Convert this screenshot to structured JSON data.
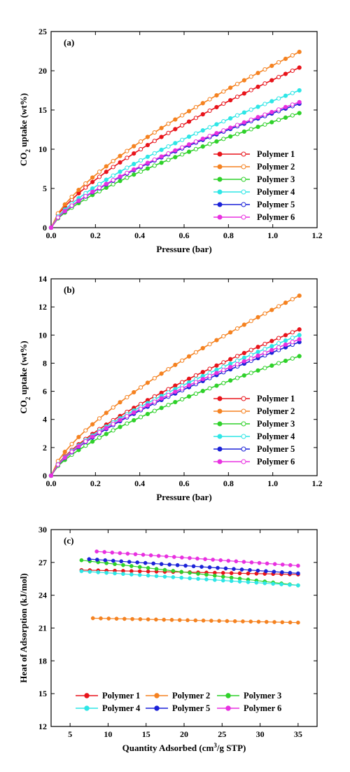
{
  "chart_data": [
    {
      "type": "line",
      "panel_label": "(a)",
      "xlabel": "Pressure (bar)",
      "ylabel": "CO",
      "ylabel_sub": "2",
      "ylabel_rest": " uptake (wt%)",
      "xlim": [
        0,
        1.2
      ],
      "ylim": [
        0,
        25
      ],
      "xticks": [
        "0.0",
        "0.2",
        "0.4",
        "0.6",
        "0.8",
        "1.0",
        "1.2"
      ],
      "yticks": [
        "0",
        "5",
        "10",
        "15",
        "20",
        "25"
      ],
      "legend_position": "bottom-right",
      "grid": false,
      "series": [
        {
          "name": "Polymer 1",
          "color": "#e8141b",
          "final": 20.4
        },
        {
          "name": "Polymer 2",
          "color": "#f58220",
          "final": 22.4
        },
        {
          "name": "Polymer 3",
          "color": "#2fd12a",
          "final": 14.6
        },
        {
          "name": "Polymer 4",
          "color": "#2ee6e6",
          "final": 17.5
        },
        {
          "name": "Polymer 5",
          "color": "#1b22d8",
          "final": 15.8
        },
        {
          "name": "Polymer 6",
          "color": "#e830e0",
          "final": 16.0
        }
      ]
    },
    {
      "type": "line",
      "panel_label": "(b)",
      "xlabel": "Pressure (bar)",
      "ylabel": "CO",
      "ylabel_sub": "2",
      "ylabel_rest": " uptake (wt%)",
      "xlim": [
        0,
        1.2
      ],
      "ylim": [
        0,
        14
      ],
      "xticks": [
        "0.0",
        "0.2",
        "0.4",
        "0.6",
        "0.8",
        "1.0",
        "1.2"
      ],
      "yticks": [
        "0",
        "2",
        "4",
        "6",
        "8",
        "10",
        "12",
        "14"
      ],
      "legend_position": "bottom-right",
      "grid": false,
      "series": [
        {
          "name": "Polymer 1",
          "color": "#e8141b",
          "final": 10.4
        },
        {
          "name": "Polymer 2",
          "color": "#f58220",
          "final": 12.8
        },
        {
          "name": "Polymer 3",
          "color": "#2fd12a",
          "final": 8.5
        },
        {
          "name": "Polymer 4",
          "color": "#2ee6e6",
          "final": 10.0
        },
        {
          "name": "Polymer 5",
          "color": "#1b22d8",
          "final": 9.5
        },
        {
          "name": "Polymer 6",
          "color": "#e830e0",
          "final": 9.7
        }
      ]
    },
    {
      "type": "scatter",
      "panel_label": "(c)",
      "xlabel": "Quantity Adsorbed (cm",
      "xlabel_sup": "3",
      "xlabel_rest": "/g STP)",
      "ylabel": "Heat of Adsorption (kJ/mol)",
      "xlim": [
        2.5,
        37.5
      ],
      "ylim": [
        12,
        30
      ],
      "xticks": [
        "5",
        "10",
        "15",
        "20",
        "25",
        "30",
        "35"
      ],
      "yticks": [
        "12",
        "15",
        "18",
        "21",
        "24",
        "27",
        "30"
      ],
      "legend_position": "bottom",
      "grid": false,
      "series": [
        {
          "name": "Polymer 1",
          "color": "#e8141b",
          "x_start": 6.5,
          "x_end": 35,
          "y_start": 26.3,
          "y_end": 25.9
        },
        {
          "name": "Polymer 2",
          "color": "#f58220",
          "x_start": 8,
          "x_end": 35,
          "y_start": 21.9,
          "y_end": 21.5
        },
        {
          "name": "Polymer 3",
          "color": "#2fd12a",
          "x_start": 6.5,
          "x_end": 35,
          "y_start": 27.2,
          "y_end": 24.9
        },
        {
          "name": "Polymer 4",
          "color": "#2ee6e6",
          "x_start": 6.5,
          "x_end": 35,
          "y_start": 26.2,
          "y_end": 24.9
        },
        {
          "name": "Polymer 5",
          "color": "#1b22d8",
          "x_start": 7.5,
          "x_end": 35,
          "y_start": 27.3,
          "y_end": 26.0
        },
        {
          "name": "Polymer 6",
          "color": "#e830e0",
          "x_start": 8.5,
          "x_end": 35,
          "y_start": 28.0,
          "y_end": 26.7
        }
      ]
    }
  ]
}
